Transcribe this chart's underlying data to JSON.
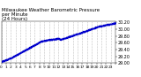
{
  "title_line1": "Milwaukee Weather Barometric Pressure",
  "title_line2": "per Minute",
  "title_line3": "(24 Hours)",
  "dot_color": "#0000cc",
  "dot_size": 0.8,
  "background_color": "#ffffff",
  "grid_color": "#888888",
  "ylim": [
    29.0,
    30.22
  ],
  "xlim": [
    0,
    1440
  ],
  "ytick_values": [
    29.0,
    29.2,
    29.4,
    29.6,
    29.8,
    30.0,
    30.2
  ],
  "ytick_labels": [
    "29.00",
    "29.20",
    "29.40",
    "29.60",
    "29.80",
    "30.00",
    "30.20"
  ],
  "xtick_interval": 60,
  "ylabel_fontsize": 3.5,
  "xlabel_fontsize": 3.2,
  "title_fontsize": 4.0,
  "figsize": [
    1.6,
    0.87
  ],
  "dpi": 100
}
